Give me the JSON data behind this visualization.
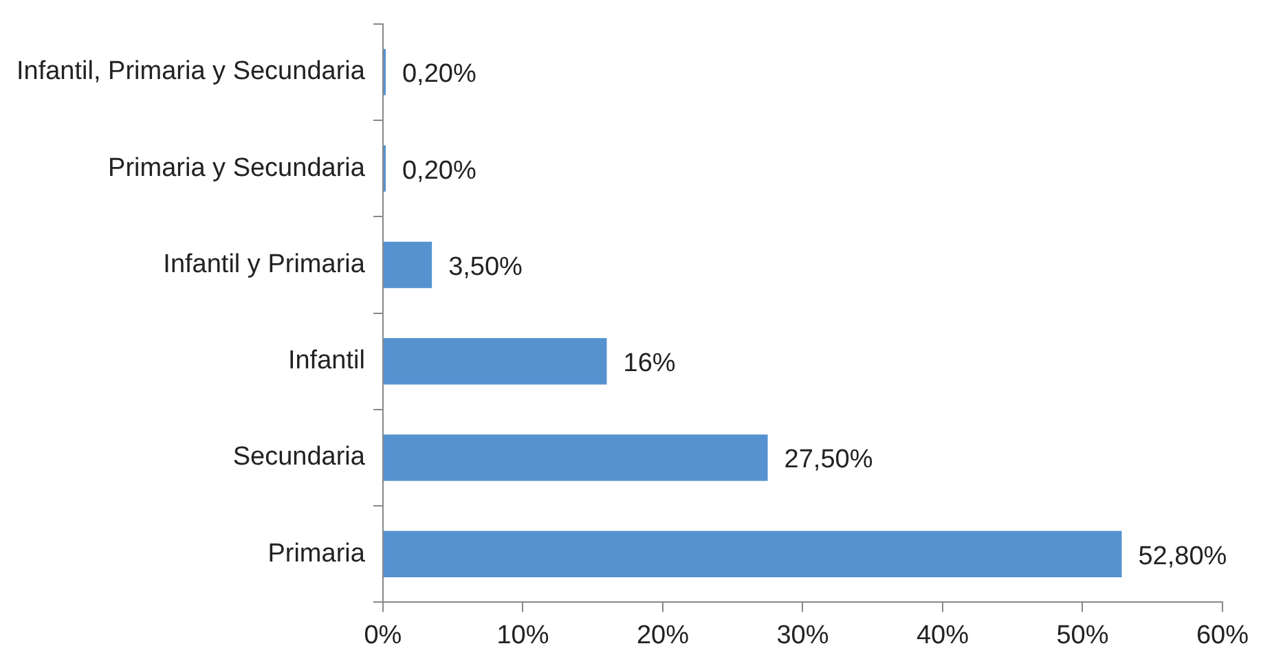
{
  "chart_data": {
    "type": "bar",
    "orientation": "horizontal",
    "categories": [
      "Infantil, Primaria y Secundaria",
      "Primaria y Secundaria",
      "Infantil y Primaria",
      "Infantil",
      "Secundaria",
      "Primaria"
    ],
    "values": [
      0.2,
      0.2,
      3.5,
      16,
      27.5,
      52.8
    ],
    "value_labels": [
      "0,20%",
      "0,20%",
      "3,50%",
      "16%",
      "27,50%",
      "52,80%"
    ],
    "color": "#5592cf",
    "xlim": [
      0,
      60
    ],
    "xticks": [
      {
        "value": 0,
        "label": "0%"
      },
      {
        "value": 10,
        "label": "10%"
      },
      {
        "value": 20,
        "label": "20%"
      },
      {
        "value": 30,
        "label": "30%"
      },
      {
        "value": 40,
        "label": "40%"
      },
      {
        "value": 50,
        "label": "50%"
      },
      {
        "value": 60,
        "label": "60%"
      }
    ],
    "grid": false,
    "legend": false
  }
}
